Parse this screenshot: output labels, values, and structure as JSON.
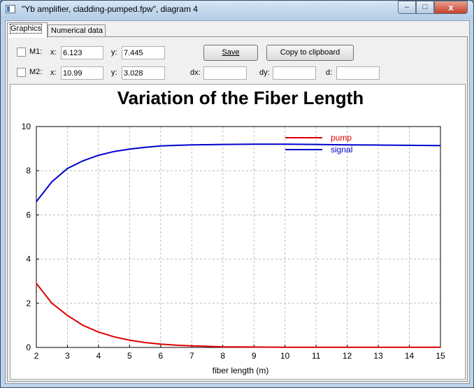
{
  "window": {
    "title": "\"Yb amplifier, cladding-pumped.fpw\", diagram 4",
    "minimize_glyph": "‒",
    "maximize_glyph": "□",
    "close_glyph": "x"
  },
  "tabs": [
    {
      "label": "Graphics",
      "active": true
    },
    {
      "label": "Numerical data",
      "active": false
    }
  ],
  "markers": {
    "m1": {
      "label": "M1:",
      "x_label": "x:",
      "x_value": "6.123",
      "y_label": "y:",
      "y_value": "7.445",
      "checked": false
    },
    "m2": {
      "label": "M2:",
      "x_label": "x:",
      "x_value": "10.99",
      "y_label": "y:",
      "y_value": "3.028",
      "checked": false
    }
  },
  "deltas": {
    "dx_label": "dx:",
    "dx_value": "",
    "dy_label": "dy:",
    "dy_value": "",
    "d_label": "d:",
    "d_value": ""
  },
  "buttons": {
    "save_label": "Save",
    "copy_label": "Copy to clipboard"
  },
  "colors": {
    "pump": "#dd0000",
    "signal": "#0000cc",
    "grid": "#bbbbbb"
  },
  "chart_data": {
    "type": "line",
    "title": "Variation of the Fiber Length",
    "xlabel": "fiber length (m)",
    "ylabel": "",
    "xlim": [
      2,
      15
    ],
    "ylim": [
      0,
      10
    ],
    "xticks": [
      2,
      3,
      4,
      5,
      6,
      7,
      8,
      9,
      10,
      11,
      12,
      13,
      14,
      15
    ],
    "yticks": [
      0,
      2,
      4,
      6,
      8,
      10
    ],
    "grid": true,
    "legend_position": "top-right",
    "series": [
      {
        "name": "pump",
        "x": [
          2,
          2.5,
          3,
          3.5,
          4,
          4.5,
          5,
          5.5,
          6,
          6.5,
          7,
          7.5,
          8,
          9,
          10,
          11,
          12,
          13,
          14,
          15
        ],
        "y": [
          2.9,
          2.0,
          1.45,
          1.0,
          0.7,
          0.48,
          0.33,
          0.22,
          0.15,
          0.1,
          0.07,
          0.05,
          0.03,
          0.02,
          0.01,
          0.01,
          0.01,
          0.01,
          0.01,
          0.01
        ]
      },
      {
        "name": "signal",
        "x": [
          2,
          2.5,
          3,
          3.5,
          4,
          4.5,
          5,
          5.5,
          6,
          6.5,
          7,
          8,
          9,
          10,
          11,
          12,
          13,
          14,
          15
        ],
        "y": [
          6.6,
          7.5,
          8.1,
          8.45,
          8.7,
          8.87,
          8.98,
          9.06,
          9.12,
          9.15,
          9.17,
          9.19,
          9.2,
          9.2,
          9.19,
          9.17,
          9.16,
          9.15,
          9.14
        ]
      }
    ]
  }
}
